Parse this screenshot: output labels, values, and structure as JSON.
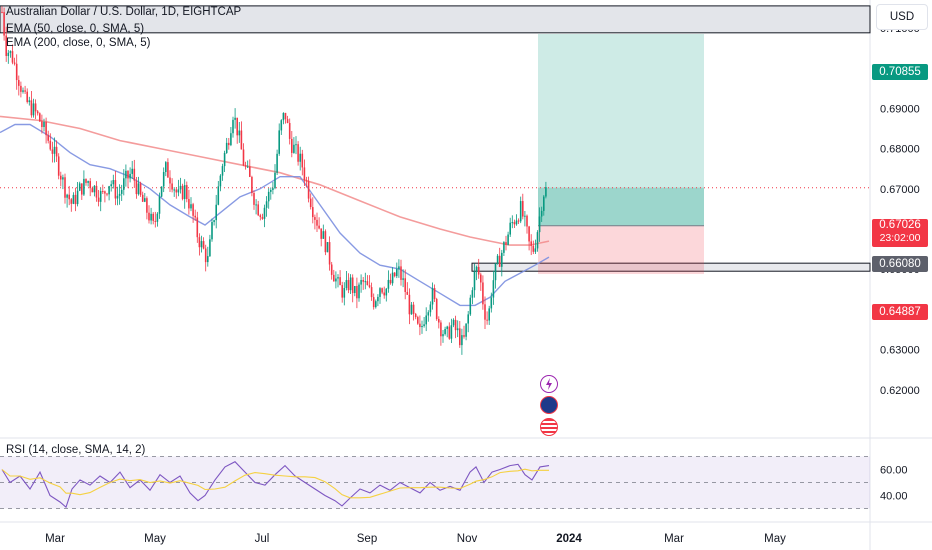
{
  "chart_data": {
    "type": "candlestick",
    "title": "Australian Dollar / U.S. Dollar, 1D, EIGHTCAP",
    "indicators": [
      "EMA (50, close, 0, SMA, 5)",
      "EMA (200, close, 0, SMA, 5)"
    ],
    "currency": "USD",
    "price_axis": {
      "ticks": [
        "0.71000",
        "0.70000",
        "0.69000",
        "0.68000",
        "0.67000",
        "0.66000",
        "0.65000",
        "0.64000",
        "0.63000",
        "0.62000"
      ],
      "range": [
        0.6175,
        0.7185
      ]
    },
    "time_axis": {
      "labels": [
        "Mar",
        "May",
        "Jul",
        "Sep",
        "Nov",
        "2024",
        "Mar",
        "May"
      ]
    },
    "price_tags": [
      {
        "value": "0.70855",
        "color": "#089981"
      },
      {
        "value": "0.67026",
        "sub": "23:02:00",
        "color": "#f23645"
      },
      {
        "value": "0.66080",
        "color": "#5d606b"
      },
      {
        "value": "0.64887",
        "color": "#f23645"
      }
    ],
    "close_path": [
      [
        2,
        0.714
      ],
      [
        6,
        0.705
      ],
      [
        12,
        0.703
      ],
      [
        18,
        0.698
      ],
      [
        25,
        0.692
      ],
      [
        32,
        0.69
      ],
      [
        38,
        0.688
      ],
      [
        45,
        0.684
      ],
      [
        52,
        0.68
      ],
      [
        58,
        0.676
      ],
      [
        65,
        0.67
      ],
      [
        72,
        0.666
      ],
      [
        80,
        0.67
      ],
      [
        88,
        0.672
      ],
      [
        95,
        0.67
      ],
      [
        102,
        0.668
      ],
      [
        110,
        0.672
      ],
      [
        118,
        0.668
      ],
      [
        125,
        0.672
      ],
      [
        132,
        0.674
      ],
      [
        140,
        0.668
      ],
      [
        148,
        0.664
      ],
      [
        154,
        0.66
      ],
      [
        160,
        0.67
      ],
      [
        166,
        0.675
      ],
      [
        172,
        0.672
      ],
      [
        178,
        0.668
      ],
      [
        185,
        0.67
      ],
      [
        192,
        0.664
      ],
      [
        198,
        0.658
      ],
      [
        203,
        0.655
      ],
      [
        208,
        0.652
      ],
      [
        212,
        0.66
      ],
      [
        217,
        0.668
      ],
      [
        222,
        0.676
      ],
      [
        228,
        0.682
      ],
      [
        233,
        0.689
      ],
      [
        238,
        0.684
      ],
      [
        244,
        0.676
      ],
      [
        250,
        0.672
      ],
      [
        256,
        0.666
      ],
      [
        262,
        0.664
      ],
      [
        268,
        0.668
      ],
      [
        274,
        0.672
      ],
      [
        280,
        0.685
      ],
      [
        285,
        0.689
      ],
      [
        290,
        0.682
      ],
      [
        296,
        0.679
      ],
      [
        302,
        0.676
      ],
      [
        308,
        0.67
      ],
      [
        314,
        0.664
      ],
      [
        320,
        0.66
      ],
      [
        326,
        0.656
      ],
      [
        332,
        0.65
      ],
      [
        338,
        0.646
      ],
      [
        344,
        0.644
      ],
      [
        350,
        0.647
      ],
      [
        356,
        0.643
      ],
      [
        362,
        0.647
      ],
      [
        368,
        0.645
      ],
      [
        374,
        0.642
      ],
      [
        380,
        0.646
      ],
      [
        386,
        0.645
      ],
      [
        392,
        0.647
      ],
      [
        398,
        0.65
      ],
      [
        404,
        0.646
      ],
      [
        410,
        0.64
      ],
      [
        416,
        0.636
      ],
      [
        420,
        0.634
      ],
      [
        426,
        0.64
      ],
      [
        432,
        0.644
      ],
      [
        436,
        0.64
      ],
      [
        440,
        0.636
      ],
      [
        446,
        0.633
      ],
      [
        452,
        0.636
      ],
      [
        458,
        0.634
      ],
      [
        463,
        0.631
      ],
      [
        468,
        0.638
      ],
      [
        472,
        0.646
      ],
      [
        476,
        0.65
      ],
      [
        480,
        0.648
      ],
      [
        484,
        0.64
      ],
      [
        488,
        0.637
      ],
      [
        492,
        0.646
      ],
      [
        496,
        0.65
      ],
      [
        500,
        0.653
      ],
      [
        506,
        0.657
      ],
      [
        511,
        0.661
      ],
      [
        516,
        0.663
      ],
      [
        521,
        0.665
      ],
      [
        526,
        0.66
      ],
      [
        530,
        0.655
      ],
      [
        534,
        0.655
      ],
      [
        539,
        0.662
      ],
      [
        543,
        0.669
      ],
      [
        547,
        0.67
      ]
    ],
    "ema50": [
      [
        0,
        0.684
      ],
      [
        15,
        0.686
      ],
      [
        30,
        0.686
      ],
      [
        50,
        0.683
      ],
      [
        70,
        0.679
      ],
      [
        90,
        0.676
      ],
      [
        110,
        0.675
      ],
      [
        130,
        0.673
      ],
      [
        150,
        0.67
      ],
      [
        170,
        0.666
      ],
      [
        190,
        0.663
      ],
      [
        205,
        0.661
      ],
      [
        220,
        0.664
      ],
      [
        240,
        0.668
      ],
      [
        260,
        0.67
      ],
      [
        280,
        0.673
      ],
      [
        300,
        0.673
      ],
      [
        320,
        0.666
      ],
      [
        340,
        0.659
      ],
      [
        360,
        0.654
      ],
      [
        380,
        0.651
      ],
      [
        400,
        0.65
      ],
      [
        420,
        0.647
      ],
      [
        440,
        0.644
      ],
      [
        460,
        0.641
      ],
      [
        475,
        0.641
      ],
      [
        490,
        0.643
      ],
      [
        505,
        0.647
      ],
      [
        520,
        0.649
      ],
      [
        535,
        0.651
      ],
      [
        549,
        0.653
      ]
    ],
    "ema200": [
      [
        0,
        0.688
      ],
      [
        40,
        0.687
      ],
      [
        80,
        0.685
      ],
      [
        120,
        0.682
      ],
      [
        160,
        0.68
      ],
      [
        200,
        0.678
      ],
      [
        240,
        0.676
      ],
      [
        280,
        0.674
      ],
      [
        320,
        0.671
      ],
      [
        360,
        0.667
      ],
      [
        400,
        0.663
      ],
      [
        440,
        0.66
      ],
      [
        470,
        0.658
      ],
      [
        490,
        0.657
      ],
      [
        510,
        0.656
      ],
      [
        530,
        0.656
      ],
      [
        549,
        0.657
      ]
    ],
    "rsi": {
      "label": "RSI (14, close, SMA, 14, 2)",
      "ticks": [
        "60.00",
        "40.00"
      ],
      "upper": 70,
      "lower": 30,
      "range": [
        25,
        75
      ],
      "values": [
        [
          2,
          60
        ],
        [
          10,
          50
        ],
        [
          20,
          55
        ],
        [
          30,
          45
        ],
        [
          40,
          58
        ],
        [
          50,
          40
        ],
        [
          60,
          35
        ],
        [
          66,
          31
        ],
        [
          72,
          45
        ],
        [
          80,
          52
        ],
        [
          90,
          48
        ],
        [
          100,
          55
        ],
        [
          110,
          50
        ],
        [
          120,
          58
        ],
        [
          130,
          46
        ],
        [
          140,
          52
        ],
        [
          150,
          44
        ],
        [
          160,
          56
        ],
        [
          170,
          50
        ],
        [
          180,
          55
        ],
        [
          190,
          42
        ],
        [
          198,
          36
        ],
        [
          205,
          40
        ],
        [
          215,
          52
        ],
        [
          225,
          62
        ],
        [
          235,
          66
        ],
        [
          245,
          58
        ],
        [
          255,
          50
        ],
        [
          265,
          48
        ],
        [
          275,
          56
        ],
        [
          285,
          63
        ],
        [
          295,
          55
        ],
        [
          305,
          50
        ],
        [
          315,
          45
        ],
        [
          325,
          40
        ],
        [
          335,
          36
        ],
        [
          342,
          32
        ],
        [
          350,
          38
        ],
        [
          360,
          45
        ],
        [
          370,
          42
        ],
        [
          380,
          48
        ],
        [
          390,
          44
        ],
        [
          400,
          50
        ],
        [
          410,
          46
        ],
        [
          420,
          42
        ],
        [
          430,
          50
        ],
        [
          440,
          44
        ],
        [
          450,
          47
        ],
        [
          460,
          44
        ],
        [
          470,
          58
        ],
        [
          476,
          62
        ],
        [
          484,
          50
        ],
        [
          492,
          58
        ],
        [
          500,
          60
        ],
        [
          510,
          63
        ],
        [
          518,
          64
        ],
        [
          525,
          56
        ],
        [
          532,
          52
        ],
        [
          540,
          62
        ],
        [
          549,
          63
        ]
      ]
    },
    "resistance_zone": [
      0.7088,
      0.7155
    ],
    "support_zone": [
      0.6495,
      0.6515
    ],
    "position": {
      "entry": 0.6608,
      "target": 0.7085,
      "stop": 0.6488
    }
  }
}
